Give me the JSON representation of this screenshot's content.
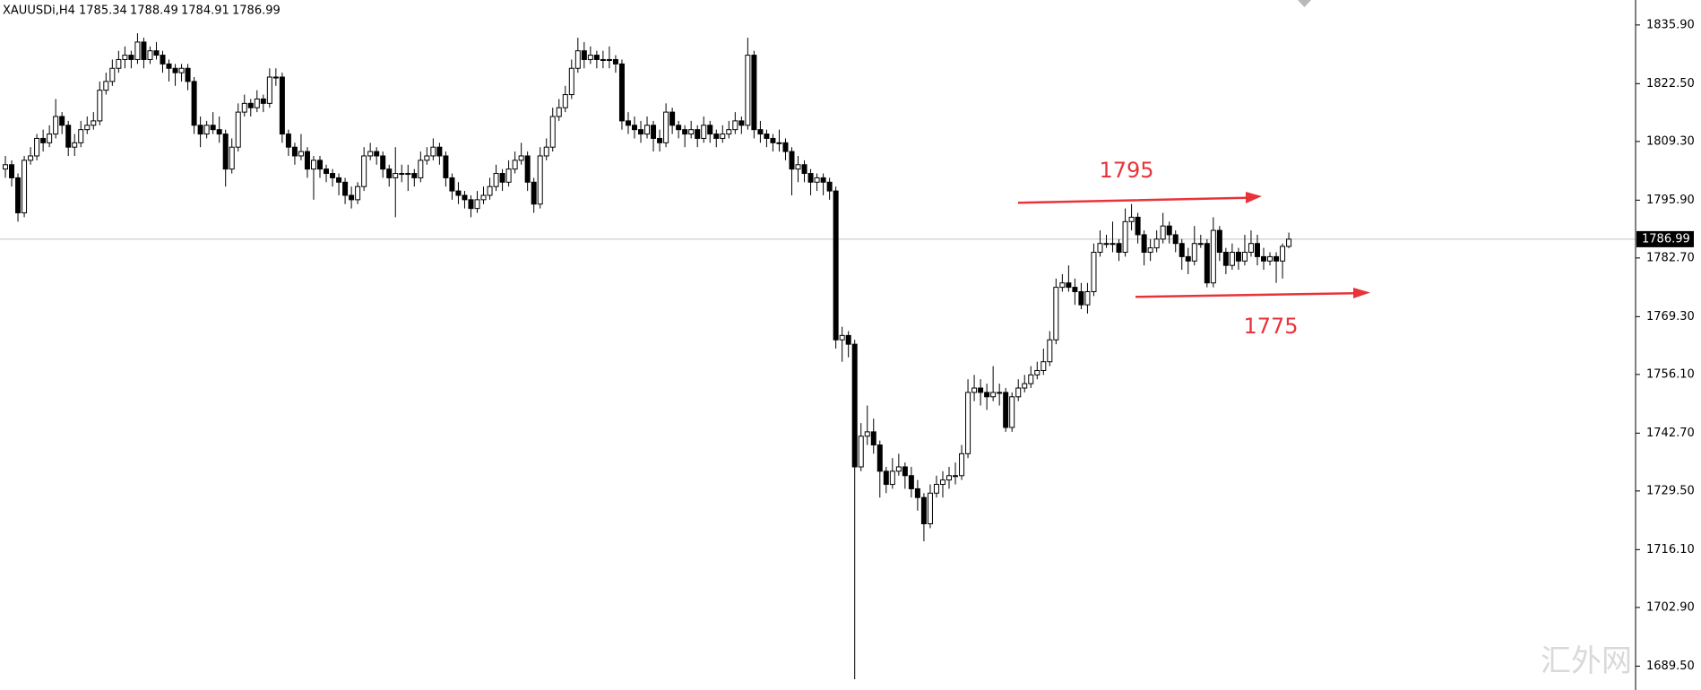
{
  "chart_data": {
    "type": "candlestick",
    "symbol": "XAUUSDi,H4",
    "ylim": [
      1684.05,
      1841.6
    ],
    "yticks": [
      {
        "value": 1835.9,
        "label": "1835.90"
      },
      {
        "value": 1822.5,
        "label": "1822.50"
      },
      {
        "value": 1809.3,
        "label": "1809.30"
      },
      {
        "value": 1795.9,
        "label": "1795.90"
      },
      {
        "value": 1782.7,
        "label": "1782.70"
      },
      {
        "value": 1769.3,
        "label": "1769.30"
      },
      {
        "value": 1756.1,
        "label": "1756.10"
      },
      {
        "value": 1742.7,
        "label": "1742.70"
      },
      {
        "value": 1729.5,
        "label": "1729.50"
      },
      {
        "value": 1716.1,
        "label": "1716.10"
      },
      {
        "value": 1702.9,
        "label": "1702.90"
      },
      {
        "value": 1689.5,
        "label": "1689.50"
      }
    ],
    "up_color": "#ffffff",
    "down_color": "#000000",
    "line_color": "#000000",
    "annotations": [
      {
        "text": "1795"
      },
      {
        "text": "1775"
      }
    ],
    "watermark": "汇外网",
    "ohlc": [
      [
        1803,
        1806,
        1801,
        1804
      ],
      [
        1804,
        1805,
        1799,
        1801
      ],
      [
        1801,
        1802,
        1791,
        1793
      ],
      [
        1793,
        1806,
        1792,
        1805
      ],
      [
        1805,
        1808,
        1804,
        1806
      ],
      [
        1806,
        1811,
        1805,
        1810
      ],
      [
        1810,
        1812,
        1807,
        1809
      ],
      [
        1809,
        1813,
        1808,
        1811
      ],
      [
        1811,
        1819,
        1810,
        1815
      ],
      [
        1815,
        1816,
        1811,
        1813
      ],
      [
        1813,
        1814,
        1806,
        1808
      ],
      [
        1808,
        1811,
        1806,
        1809
      ],
      [
        1809,
        1814,
        1808,
        1812
      ],
      [
        1812,
        1815,
        1811,
        1813
      ],
      [
        1813,
        1816,
        1812,
        1814
      ],
      [
        1814,
        1823,
        1813,
        1821
      ],
      [
        1821,
        1825,
        1820,
        1823
      ],
      [
        1823,
        1828,
        1822,
        1826
      ],
      [
        1826,
        1830,
        1825,
        1828
      ],
      [
        1828,
        1831,
        1826,
        1829
      ],
      [
        1829,
        1830,
        1826,
        1828
      ],
      [
        1828,
        1834,
        1827,
        1832
      ],
      [
        1832,
        1833,
        1826,
        1828
      ],
      [
        1828,
        1831,
        1827,
        1830
      ],
      [
        1830,
        1832,
        1828,
        1829
      ],
      [
        1829,
        1830,
        1825,
        1827
      ],
      [
        1827,
        1828,
        1823,
        1826
      ],
      [
        1826,
        1827,
        1822,
        1825
      ],
      [
        1825,
        1827,
        1823,
        1826
      ],
      [
        1826,
        1827,
        1821,
        1823
      ],
      [
        1823,
        1824,
        1811,
        1813
      ],
      [
        1813,
        1815,
        1808,
        1811
      ],
      [
        1811,
        1814,
        1810,
        1813
      ],
      [
        1813,
        1816,
        1811,
        1812
      ],
      [
        1812,
        1815,
        1809,
        1811
      ],
      [
        1811,
        1812,
        1799,
        1803
      ],
      [
        1803,
        1810,
        1802,
        1808
      ],
      [
        1808,
        1818,
        1807,
        1816
      ],
      [
        1816,
        1820,
        1815,
        1818
      ],
      [
        1818,
        1819,
        1815,
        1817
      ],
      [
        1817,
        1821,
        1816,
        1819
      ],
      [
        1819,
        1820,
        1816,
        1818
      ],
      [
        1818,
        1826,
        1817,
        1824
      ],
      [
        1824,
        1826,
        1822,
        1824
      ],
      [
        1824,
        1825,
        1809,
        1811
      ],
      [
        1811,
        1812,
        1806,
        1808
      ],
      [
        1808,
        1809,
        1804,
        1806
      ],
      [
        1806,
        1811,
        1805,
        1807
      ],
      [
        1807,
        1808,
        1801,
        1803
      ],
      [
        1803,
        1806,
        1796,
        1805
      ],
      [
        1805,
        1806,
        1801,
        1803
      ],
      [
        1803,
        1804,
        1800,
        1802
      ],
      [
        1802,
        1803,
        1799,
        1801
      ],
      [
        1801,
        1802,
        1797,
        1800
      ],
      [
        1800,
        1801,
        1795,
        1797
      ],
      [
        1797,
        1799,
        1794,
        1796
      ],
      [
        1796,
        1800,
        1795,
        1799
      ],
      [
        1799,
        1808,
        1798,
        1806
      ],
      [
        1806,
        1809,
        1805,
        1807
      ],
      [
        1807,
        1808,
        1804,
        1806
      ],
      [
        1806,
        1807,
        1801,
        1803
      ],
      [
        1803,
        1804,
        1799,
        1801
      ],
      [
        1801,
        1808,
        1792,
        1802
      ],
      [
        1802,
        1804,
        1800,
        1802
      ],
      [
        1802,
        1804,
        1798,
        1802
      ],
      [
        1802,
        1803,
        1799,
        1801
      ],
      [
        1801,
        1807,
        1800,
        1805
      ],
      [
        1805,
        1808,
        1804,
        1806
      ],
      [
        1806,
        1810,
        1805,
        1808
      ],
      [
        1808,
        1809,
        1804,
        1806
      ],
      [
        1806,
        1807,
        1799,
        1801
      ],
      [
        1801,
        1802,
        1796,
        1798
      ],
      [
        1798,
        1800,
        1795,
        1797
      ],
      [
        1797,
        1798,
        1794,
        1796
      ],
      [
        1796,
        1797,
        1792,
        1794
      ],
      [
        1794,
        1798,
        1793,
        1796
      ],
      [
        1796,
        1799,
        1795,
        1797
      ],
      [
        1797,
        1801,
        1796,
        1799
      ],
      [
        1799,
        1804,
        1798,
        1802
      ],
      [
        1802,
        1803,
        1798,
        1800
      ],
      [
        1800,
        1805,
        1799,
        1803
      ],
      [
        1803,
        1807,
        1802,
        1805
      ],
      [
        1805,
        1809,
        1804,
        1806
      ],
      [
        1806,
        1807,
        1798,
        1800
      ],
      [
        1800,
        1801,
        1793,
        1795
      ],
      [
        1795,
        1808,
        1794,
        1806
      ],
      [
        1806,
        1810,
        1805,
        1808
      ],
      [
        1808,
        1817,
        1807,
        1815
      ],
      [
        1815,
        1819,
        1814,
        1817
      ],
      [
        1817,
        1822,
        1816,
        1820
      ],
      [
        1820,
        1828,
        1819,
        1826
      ],
      [
        1826,
        1833,
        1825,
        1830
      ],
      [
        1830,
        1832,
        1826,
        1828
      ],
      [
        1828,
        1831,
        1827,
        1829
      ],
      [
        1829,
        1830,
        1826,
        1828
      ],
      [
        1828,
        1830,
        1826,
        1828
      ],
      [
        1828,
        1831,
        1826,
        1828
      ],
      [
        1828,
        1829,
        1825,
        1827
      ],
      [
        1827,
        1828,
        1812,
        1814
      ],
      [
        1814,
        1816,
        1811,
        1813
      ],
      [
        1813,
        1815,
        1810,
        1812
      ],
      [
        1812,
        1814,
        1809,
        1811
      ],
      [
        1811,
        1815,
        1810,
        1813
      ],
      [
        1813,
        1814,
        1807,
        1810
      ],
      [
        1810,
        1812,
        1807,
        1809
      ],
      [
        1809,
        1818,
        1808,
        1816
      ],
      [
        1816,
        1817,
        1811,
        1813
      ],
      [
        1813,
        1814,
        1810,
        1812
      ],
      [
        1812,
        1813,
        1808,
        1811
      ],
      [
        1811,
        1814,
        1810,
        1812
      ],
      [
        1812,
        1813,
        1808,
        1810
      ],
      [
        1810,
        1815,
        1809,
        1813
      ],
      [
        1813,
        1814,
        1809,
        1811
      ],
      [
        1811,
        1812,
        1808,
        1810
      ],
      [
        1810,
        1813,
        1809,
        1811
      ],
      [
        1811,
        1814,
        1810,
        1812
      ],
      [
        1812,
        1816,
        1811,
        1814
      ],
      [
        1814,
        1815,
        1811,
        1813
      ],
      [
        1813,
        1833,
        1812,
        1829
      ],
      [
        1829,
        1830,
        1810,
        1812
      ],
      [
        1812,
        1814,
        1809,
        1811
      ],
      [
        1811,
        1812,
        1808,
        1810
      ],
      [
        1810,
        1811,
        1807,
        1809
      ],
      [
        1809,
        1812,
        1807,
        1809
      ],
      [
        1809,
        1810,
        1805,
        1807
      ],
      [
        1807,
        1808,
        1797,
        1803
      ],
      [
        1803,
        1806,
        1800,
        1804
      ],
      [
        1804,
        1805,
        1800,
        1802
      ],
      [
        1802,
        1803,
        1797,
        1800
      ],
      [
        1800,
        1802,
        1798,
        1801
      ],
      [
        1801,
        1802,
        1797,
        1800
      ],
      [
        1800,
        1801,
        1796,
        1798
      ],
      [
        1798,
        1799,
        1762,
        1764
      ],
      [
        1764,
        1767,
        1759,
        1765
      ],
      [
        1765,
        1766,
        1760,
        1763
      ],
      [
        1763,
        1764,
        1686.5,
        1735
      ],
      [
        1735,
        1745,
        1734,
        1742
      ],
      [
        1742,
        1749,
        1740,
        1743
      ],
      [
        1743,
        1746,
        1738,
        1740
      ],
      [
        1740,
        1741,
        1728,
        1734
      ],
      [
        1734,
        1735,
        1729,
        1731
      ],
      [
        1731,
        1737,
        1730,
        1734
      ],
      [
        1734,
        1738,
        1733,
        1735
      ],
      [
        1735,
        1736,
        1730,
        1733
      ],
      [
        1733,
        1735,
        1728,
        1730
      ],
      [
        1730,
        1732,
        1725,
        1728
      ],
      [
        1728,
        1729,
        1718,
        1722
      ],
      [
        1722,
        1731,
        1721,
        1729
      ],
      [
        1729,
        1733,
        1728,
        1731
      ],
      [
        1731,
        1734,
        1728,
        1732
      ],
      [
        1732,
        1735,
        1730,
        1733
      ],
      [
        1733,
        1736,
        1731,
        1733
      ],
      [
        1733,
        1740,
        1732,
        1738
      ],
      [
        1738,
        1755,
        1737,
        1752
      ],
      [
        1752,
        1756,
        1750,
        1753
      ],
      [
        1753,
        1755,
        1749,
        1752
      ],
      [
        1752,
        1754,
        1748,
        1751
      ],
      [
        1751,
        1758,
        1750,
        1752
      ],
      [
        1752,
        1754,
        1749,
        1752
      ],
      [
        1752,
        1753,
        1743,
        1744
      ],
      [
        1744,
        1752,
        1743,
        1751
      ],
      [
        1751,
        1755,
        1750,
        1753
      ],
      [
        1753,
        1756,
        1752,
        1754
      ],
      [
        1754,
        1758,
        1753,
        1756
      ],
      [
        1756,
        1759,
        1755,
        1757
      ],
      [
        1757,
        1762,
        1756,
        1759
      ],
      [
        1759,
        1766,
        1758,
        1764
      ],
      [
        1764,
        1778,
        1763,
        1776
      ],
      [
        1776,
        1779,
        1775,
        1777
      ],
      [
        1777,
        1781,
        1775,
        1776
      ],
      [
        1776,
        1778,
        1772,
        1775
      ],
      [
        1775,
        1777,
        1771,
        1772
      ],
      [
        1772,
        1777,
        1770,
        1775
      ],
      [
        1775,
        1786,
        1774,
        1784
      ],
      [
        1784,
        1789,
        1783,
        1786
      ],
      [
        1786,
        1788,
        1785,
        1786
      ],
      [
        1786,
        1791,
        1784,
        1786
      ],
      [
        1786,
        1787,
        1782,
        1784
      ],
      [
        1784,
        1794,
        1783,
        1791
      ],
      [
        1791,
        1795,
        1789,
        1792
      ],
      [
        1792,
        1793,
        1786,
        1788
      ],
      [
        1788,
        1789,
        1781,
        1784
      ],
      [
        1784,
        1787,
        1782,
        1785
      ],
      [
        1785,
        1789,
        1784,
        1787
      ],
      [
        1787,
        1793,
        1786,
        1790
      ],
      [
        1790,
        1791,
        1786,
        1788
      ],
      [
        1788,
        1789,
        1784,
        1786
      ],
      [
        1786,
        1787,
        1780,
        1783
      ],
      [
        1783,
        1785,
        1779,
        1782
      ],
      [
        1782,
        1790,
        1781,
        1786
      ],
      [
        1786,
        1788,
        1785,
        1786
      ],
      [
        1786,
        1787,
        1776,
        1777
      ],
      [
        1777,
        1792,
        1776,
        1789
      ],
      [
        1789,
        1790,
        1782,
        1784
      ],
      [
        1784,
        1785,
        1779,
        1781
      ],
      [
        1781,
        1786,
        1780,
        1784
      ],
      [
        1784,
        1785,
        1780,
        1782
      ],
      [
        1782,
        1788,
        1781,
        1784
      ],
      [
        1784,
        1789,
        1783,
        1786
      ],
      [
        1786,
        1788,
        1781,
        1783
      ],
      [
        1783,
        1785,
        1780,
        1782
      ],
      [
        1782,
        1784,
        1781,
        1783
      ],
      [
        1783,
        1784,
        1777,
        1782
      ],
      [
        1782,
        1786,
        1778,
        1785.34
      ],
      [
        1785.34,
        1788.49,
        1784.91,
        1786.99
      ]
    ]
  }
}
